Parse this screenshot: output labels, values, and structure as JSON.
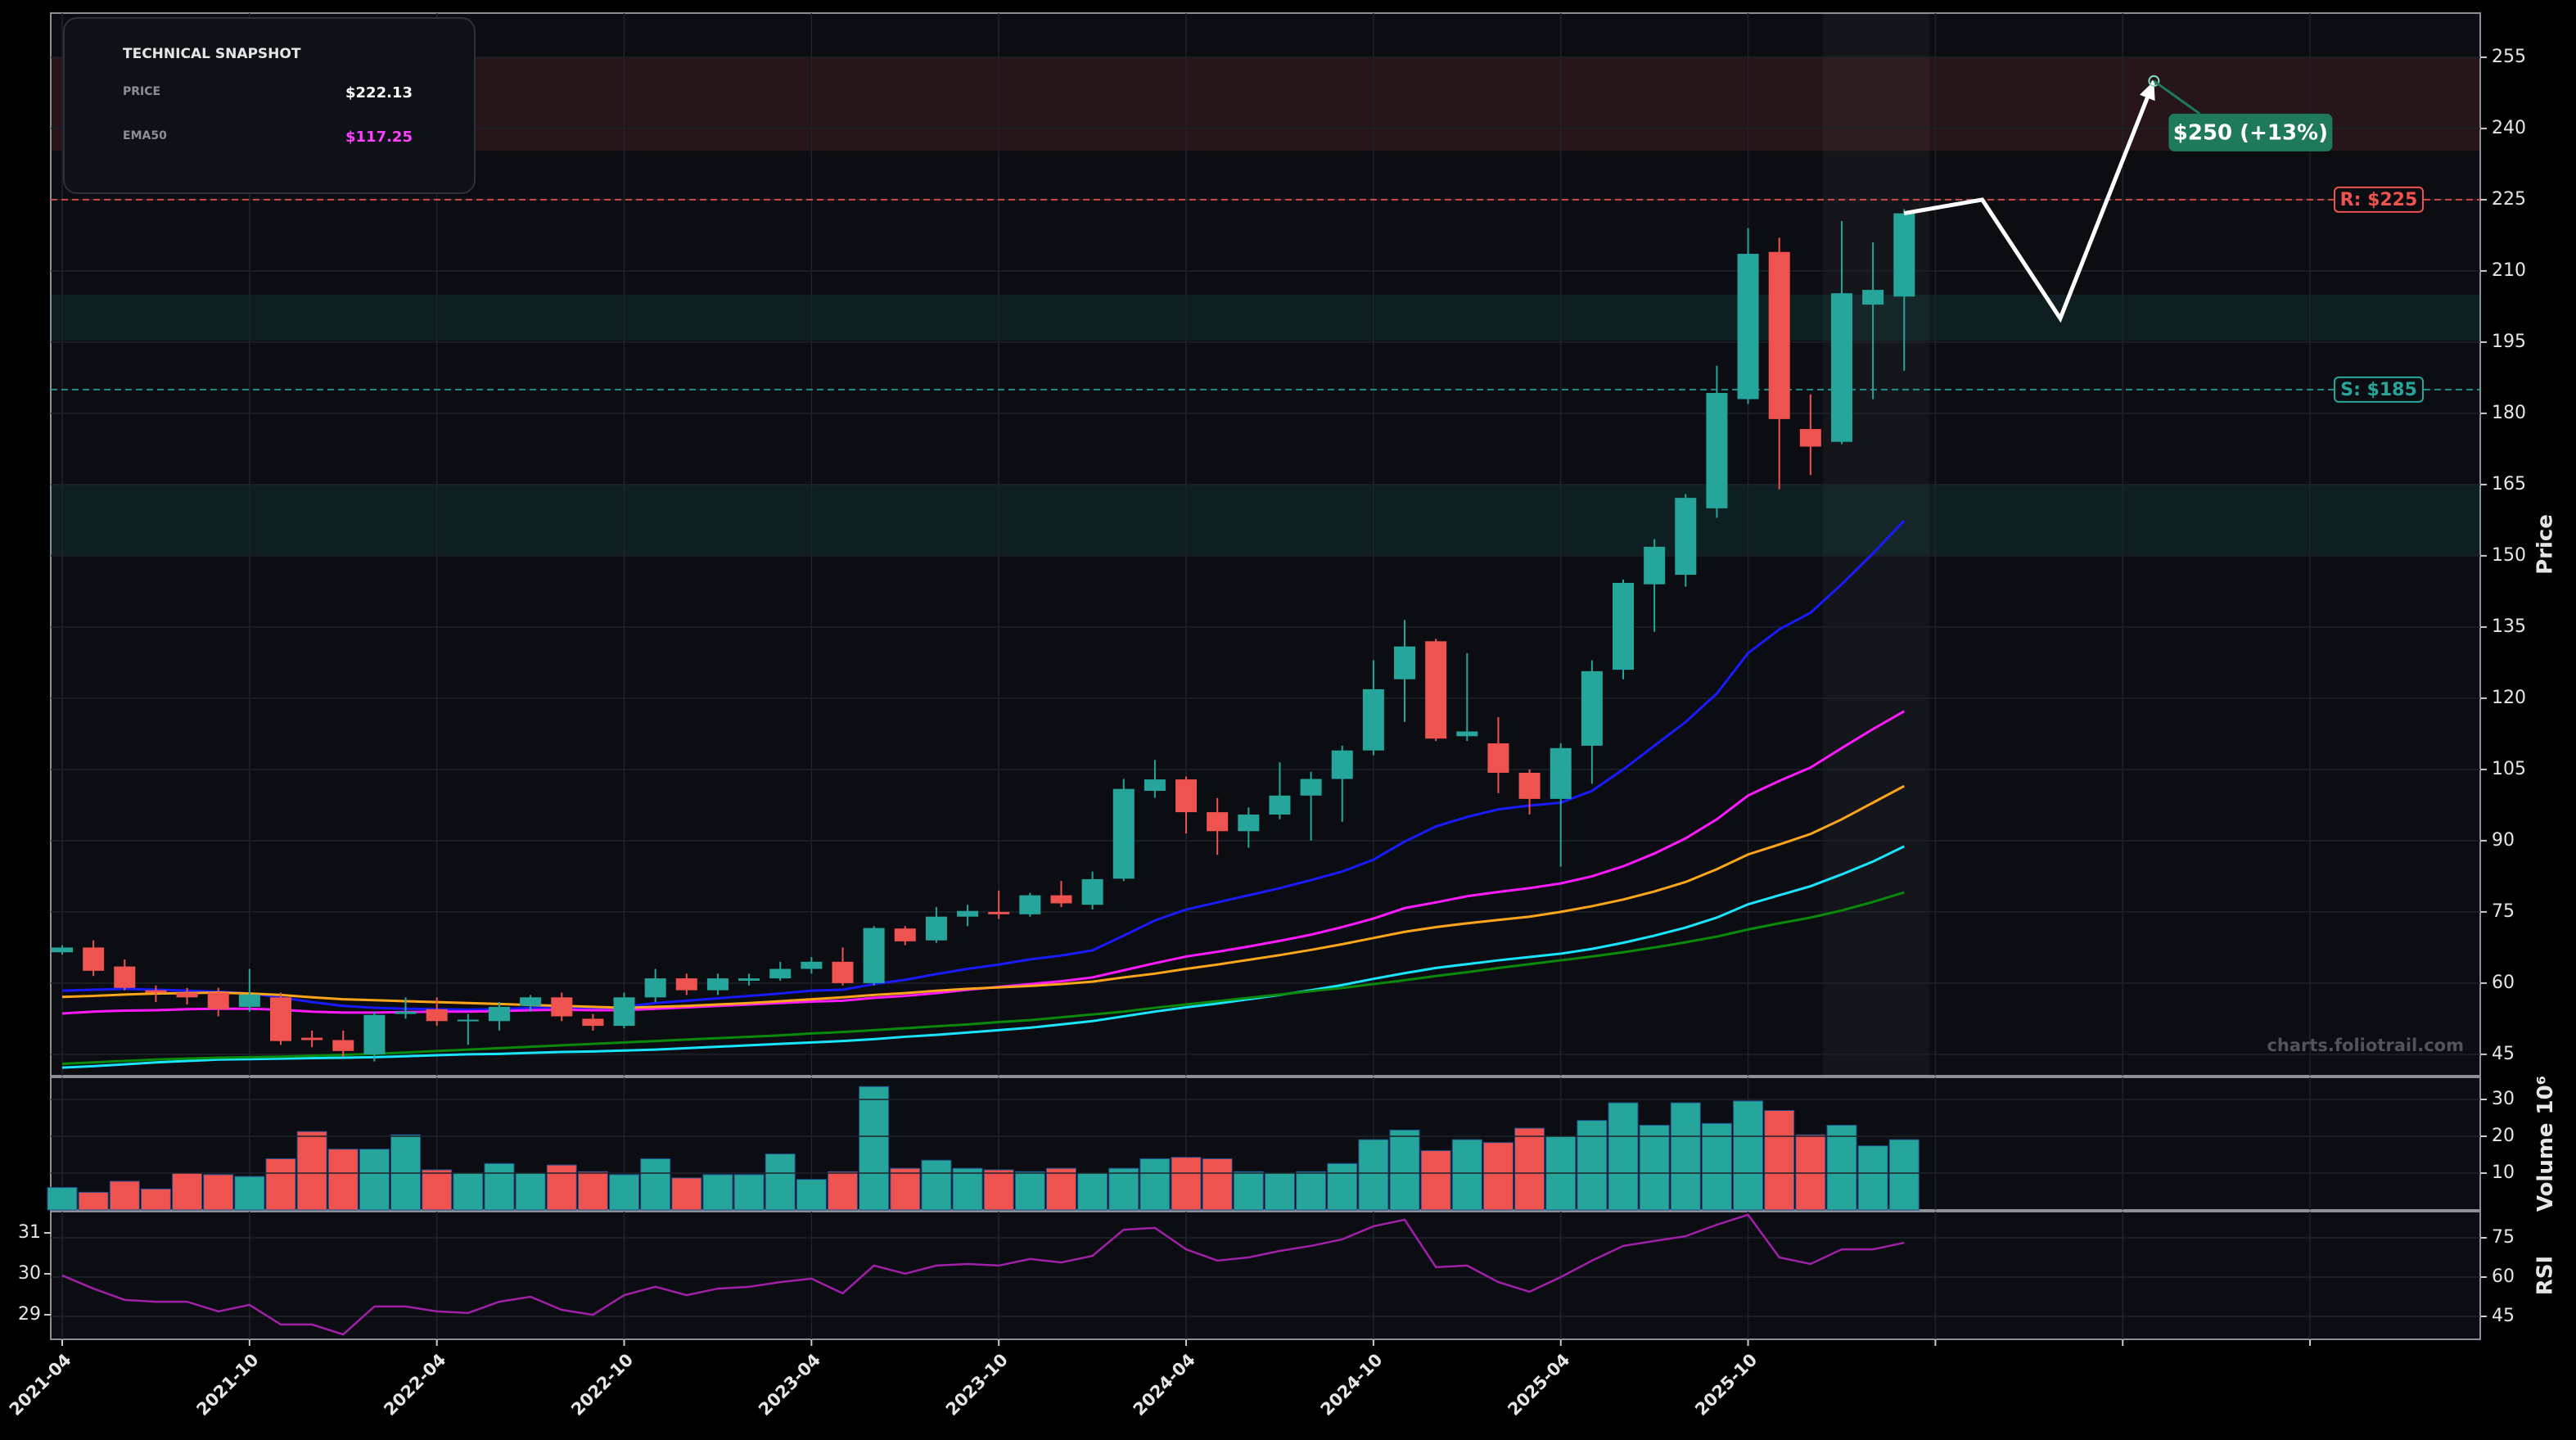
{
  "chart_data": {
    "type": "candlestick",
    "categories": [
      "2021-04",
      null,
      null,
      null,
      null,
      null,
      "2021-10",
      null,
      null,
      null,
      null,
      null,
      "2022-04",
      null,
      null,
      null,
      null,
      null,
      "2022-10",
      null,
      null,
      null,
      null,
      null,
      "2023-04",
      null,
      null,
      null,
      null,
      null,
      "2023-10",
      null,
      null,
      null,
      null,
      null,
      "2024-04",
      null,
      null,
      null,
      null,
      null,
      "2024-10",
      null,
      null,
      null,
      null,
      null,
      "2025-04",
      null,
      null,
      null,
      null,
      null,
      "2025-10",
      null,
      null,
      null,
      null,
      null
    ],
    "open": [
      66.5,
      67.5,
      63.5,
      58.5,
      58,
      58,
      55,
      57,
      48.5,
      48,
      45,
      53.5,
      54.5,
      52,
      52,
      55.2,
      57,
      52.5,
      51,
      57,
      61,
      58.5,
      60.5,
      61,
      63,
      64.5,
      60,
      71.5,
      69,
      74,
      75,
      74.5,
      78.5,
      76.5,
      82,
      100.5,
      102.9,
      96,
      92,
      95.5,
      99.5,
      103,
      109,
      124,
      132,
      112,
      110.5,
      104.3,
      98.8,
      110,
      126,
      144,
      146,
      160,
      183,
      214,
      176.7,
      174,
      202.9,
      204.6
    ],
    "high": [
      68,
      69,
      65,
      59.5,
      59,
      59,
      63,
      58,
      50,
      50,
      54,
      57,
      57,
      53.5,
      56,
      57.5,
      58,
      53.5,
      58,
      63,
      62,
      62,
      62,
      64.5,
      65.5,
      67.5,
      72,
      72,
      76,
      76.5,
      79.5,
      79,
      81.5,
      83.5,
      103,
      107,
      103.5,
      99,
      97,
      106.5,
      104.5,
      110,
      128,
      136.5,
      132.5,
      129.5,
      116,
      105,
      110.5,
      128,
      145,
      153.5,
      163,
      190,
      219,
      217,
      184,
      220.5,
      216,
      223
    ],
    "low": [
      66,
      61.5,
      58.5,
      56,
      55.5,
      53,
      54,
      47,
      46.5,
      44.5,
      43.5,
      52.5,
      51,
      47,
      50,
      54,
      52,
      50,
      50.5,
      56,
      57.5,
      57.5,
      59.5,
      60.5,
      62,
      59.5,
      59.5,
      68,
      68.5,
      72,
      73.5,
      74,
      76,
      75.5,
      81.5,
      99,
      91.5,
      87,
      88.5,
      94.5,
      90,
      94,
      108,
      115,
      111,
      111,
      100,
      95.5,
      84.5,
      102,
      124,
      134,
      143.5,
      158,
      182,
      164,
      167,
      173.5,
      183,
      189
    ],
    "close": [
      67.5,
      62.6,
      59,
      58,
      57,
      54.5,
      57.6,
      47.8,
      48,
      45.7,
      53.3,
      54,
      52,
      52.3,
      55,
      57,
      53,
      51,
      57,
      61,
      58.5,
      61,
      61,
      63,
      64.5,
      60,
      71.6,
      68.8,
      74,
      75.2,
      74.5,
      78.5,
      76.8,
      81.9,
      100.9,
      102.9,
      96,
      92,
      95.5,
      99.5,
      103,
      109,
      121.9,
      130.9,
      111.5,
      113,
      104.3,
      98.8,
      109.5,
      125.7,
      144.3,
      151.9,
      162.2,
      184.3,
      213.6,
      178.8,
      173,
      205.3,
      206,
      222.13
    ],
    "up_color": "#26a69a",
    "down_color": "#ef5350",
    "ylabel": "Price",
    "ylim": [
      40.5,
      264.3
    ],
    "yticks": [
      45,
      60,
      75,
      90,
      105,
      120,
      135,
      150,
      165,
      180,
      195,
      210,
      225,
      240,
      255
    ],
    "grid": true,
    "ema": [
      {
        "color": "#1a1aff",
        "values": [
          58.4,
          58.6,
          58.8,
          58.6,
          58.4,
          58.2,
          57.8,
          57.0,
          56.0,
          55.2,
          54.8,
          54.6,
          54.5,
          54.4,
          54.5,
          54.8,
          54.9,
          54.7,
          55.0,
          55.8,
          56.3,
          56.8,
          57.3,
          57.8,
          58.4,
          58.6,
          59.8,
          60.7,
          61.9,
          63.0,
          63.9,
          65.0,
          65.8,
          66.9,
          70.0,
          73.2,
          75.5,
          77.0,
          78.5,
          80.0,
          81.7,
          83.5,
          86.0,
          89.8,
          93.0,
          95.0,
          96.6,
          97.4,
          98.0,
          100.5,
          105.0,
          110.0,
          115.0,
          121.0,
          129.5,
          134.5,
          138.0,
          144.0,
          150.5,
          157.4
        ]
      },
      {
        "color": "#ff1aff",
        "values": [
          53.6,
          54.0,
          54.2,
          54.3,
          54.5,
          54.6,
          54.6,
          54.4,
          54.0,
          53.8,
          53.8,
          53.9,
          54.0,
          54.0,
          54.1,
          54.3,
          54.4,
          54.3,
          54.3,
          54.6,
          54.9,
          55.2,
          55.5,
          55.8,
          56.1,
          56.3,
          56.9,
          57.3,
          57.9,
          58.6,
          59.2,
          59.8,
          60.4,
          61.2,
          62.7,
          64.2,
          65.6,
          66.6,
          67.7,
          68.9,
          70.2,
          71.8,
          73.6,
          75.8,
          77.0,
          78.3,
          79.2,
          80.0,
          81.0,
          82.5,
          84.6,
          87.3,
          90.5,
          94.5,
          99.5,
          102.6,
          105.4,
          109.5,
          113.5,
          117.25
        ]
      },
      {
        "color": "#ffa51a",
        "values": [
          57.1,
          57.3,
          57.6,
          57.8,
          57.9,
          58.0,
          57.8,
          57.5,
          57.0,
          56.6,
          56.4,
          56.2,
          56.0,
          55.8,
          55.6,
          55.4,
          55.2,
          55.0,
          54.8,
          55.0,
          55.2,
          55.5,
          55.8,
          56.2,
          56.6,
          57.0,
          57.5,
          57.9,
          58.4,
          58.8,
          59.1,
          59.4,
          59.8,
          60.3,
          61.2,
          62.0,
          63.0,
          63.9,
          64.9,
          65.9,
          67.0,
          68.2,
          69.5,
          70.8,
          71.8,
          72.6,
          73.3,
          74.0,
          75.0,
          76.2,
          77.6,
          79.3,
          81.3,
          84.0,
          87.1,
          89.2,
          91.4,
          94.5,
          98.0,
          101.5
        ]
      },
      {
        "color": "#1ae5ff",
        "values": [
          42.2,
          42.5,
          42.9,
          43.3,
          43.6,
          43.9,
          44.0,
          44.1,
          44.2,
          44.3,
          44.4,
          44.6,
          44.8,
          45.0,
          45.1,
          45.3,
          45.5,
          45.6,
          45.8,
          46.0,
          46.3,
          46.6,
          46.9,
          47.2,
          47.5,
          47.8,
          48.2,
          48.7,
          49.1,
          49.6,
          50.1,
          50.6,
          51.3,
          52.0,
          53.0,
          54.0,
          54.9,
          55.7,
          56.6,
          57.5,
          58.5,
          59.6,
          60.9,
          62.1,
          63.2,
          64.0,
          64.8,
          65.5,
          66.2,
          67.2,
          68.5,
          70.0,
          71.7,
          73.8,
          76.6,
          78.5,
          80.4,
          82.9,
          85.6,
          88.8
        ]
      },
      {
        "color": "#0a8a0a",
        "values": [
          43.0,
          43.3,
          43.6,
          43.9,
          44.1,
          44.3,
          44.4,
          44.5,
          44.7,
          44.9,
          45.1,
          45.4,
          45.7,
          46.0,
          46.3,
          46.6,
          46.9,
          47.2,
          47.5,
          47.8,
          48.1,
          48.4,
          48.7,
          49.0,
          49.4,
          49.7,
          50.1,
          50.5,
          50.9,
          51.3,
          51.8,
          52.2,
          52.8,
          53.4,
          54.0,
          54.8,
          55.5,
          56.2,
          56.9,
          57.6,
          58.3,
          59.0,
          59.8,
          60.6,
          61.5,
          62.3,
          63.2,
          64.0,
          64.8,
          65.6,
          66.5,
          67.5,
          68.6,
          69.8,
          71.3,
          72.6,
          73.8,
          75.3,
          77.1,
          79.1
        ]
      }
    ],
    "zones": [
      {
        "range": [
          235.3,
          255
        ],
        "color": "#ef5350"
      },
      {
        "range": [
          195.3,
          205
        ],
        "color": "#26a69a"
      },
      {
        "range": [
          150.2,
          165
        ],
        "color": "#26a69a"
      }
    ],
    "levels": [
      {
        "value": 225,
        "label": "R: $225",
        "color": "#ef5350"
      },
      {
        "value": 185,
        "label": "S: $185",
        "color": "#26a69a"
      }
    ],
    "forecast": {
      "x": [
        59,
        61.5,
        64,
        67
      ],
      "values": [
        222.13,
        225,
        200,
        250
      ],
      "color": "#ffffff",
      "label": "$250 (+13%)",
      "label_color": "#1f7a5c"
    },
    "watermark": "charts.foliotrail.com",
    "volume": {
      "ylabel": "Volume",
      "offset_label": "10⁶",
      "ylim": [
        0,
        36
      ],
      "yticks": [
        10,
        20,
        30
      ],
      "values": [
        6.1,
        4.8,
        7.8,
        5.7,
        10,
        9.6,
        9.1,
        13.9,
        21.3,
        16.5,
        16.5,
        20.4,
        10.9,
        10,
        12.6,
        10,
        12.2,
        10.4,
        9.6,
        13.9,
        8.7,
        9.6,
        9.6,
        15.2,
        8.3,
        10.4,
        33.5,
        11.3,
        13.5,
        11.3,
        10.9,
        10.4,
        11.3,
        10,
        11.3,
        13.9,
        14.3,
        13.9,
        10.4,
        10,
        10.4,
        12.6,
        19.1,
        21.7,
        16.1,
        19.1,
        18.3,
        22.2,
        20,
        24.3,
        29.1,
        23,
        29.1,
        23.5,
        29.6,
        27,
        20.4,
        23,
        17.4,
        19.1
      ]
    },
    "rsi": {
      "ylabel": "RSI",
      "color": "#a020a8",
      "ylim": [
        36.25,
        85
      ],
      "yticks": [
        45,
        60,
        75
      ],
      "y2lim": [
        28.4,
        31.52
      ],
      "y2ticks": [
        29,
        30,
        31
      ],
      "values": [
        60.6,
        55.6,
        51.3,
        50.6,
        50.6,
        46.9,
        49.4,
        41.9,
        41.9,
        38.1,
        48.8,
        48.8,
        46.9,
        46.3,
        50.6,
        52.5,
        47.5,
        45.6,
        53.1,
        56.3,
        53.1,
        55.6,
        56.3,
        58.1,
        59.4,
        53.8,
        64.4,
        61.3,
        64.4,
        65,
        64.4,
        66.9,
        65.6,
        68.1,
        78.1,
        78.8,
        70.6,
        66.3,
        67.5,
        70,
        71.9,
        74.4,
        79.4,
        81.9,
        63.8,
        64.4,
        58.1,
        54.4,
        60,
        66.3,
        71.9,
        73.8,
        75.6,
        80,
        83.8,
        67.5,
        65,
        70.6,
        70.6,
        73.1
      ]
    }
  },
  "snapshot": {
    "title": "TECHNICAL SNAPSHOT",
    "rows": [
      {
        "label": "PRICE",
        "value": "$222.13",
        "color": "#ffffff"
      },
      {
        "label": "EMA50",
        "value": "$117.25",
        "color": "#ff40ff"
      }
    ]
  }
}
